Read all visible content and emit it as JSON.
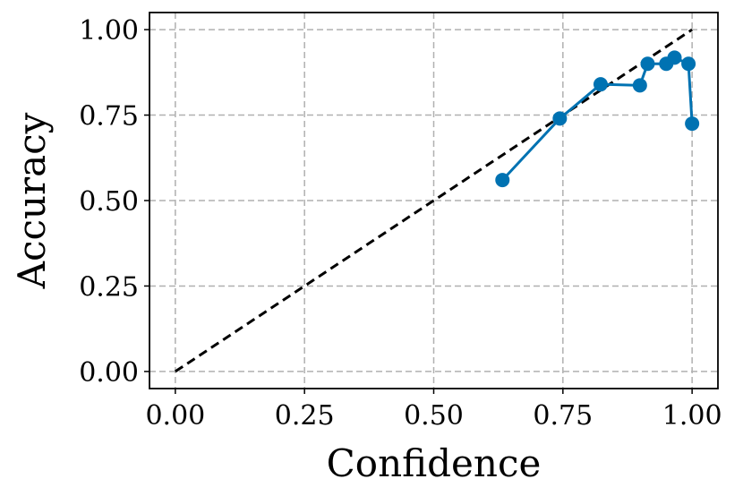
{
  "chart_data": {
    "type": "line",
    "xlabel": "Confidence",
    "ylabel": "Accuracy",
    "xlim": [
      -0.05,
      1.05
    ],
    "ylim": [
      -0.05,
      1.05
    ],
    "xticks": [
      0.0,
      0.25,
      0.5,
      0.75,
      1.0
    ],
    "yticks": [
      0.0,
      0.25,
      0.5,
      0.75,
      1.0
    ],
    "xtick_labels": [
      "0.00",
      "0.25",
      "0.50",
      "0.75",
      "1.00"
    ],
    "ytick_labels": [
      "0.00",
      "0.25",
      "0.50",
      "0.75",
      "1.00"
    ],
    "grid": true,
    "reference_line": {
      "x": [
        0,
        1
      ],
      "y": [
        0,
        1
      ],
      "style": "dashed",
      "color": "#000000"
    },
    "series": [
      {
        "color": "#0072b2",
        "marker": "circle",
        "x": [
          0.633,
          0.744,
          0.823,
          0.899,
          0.914,
          0.95,
          0.966,
          0.993,
          1.0
        ],
        "y": [
          0.56,
          0.74,
          0.84,
          0.837,
          0.9,
          0.9,
          0.918,
          0.9,
          0.725
        ]
      }
    ]
  }
}
